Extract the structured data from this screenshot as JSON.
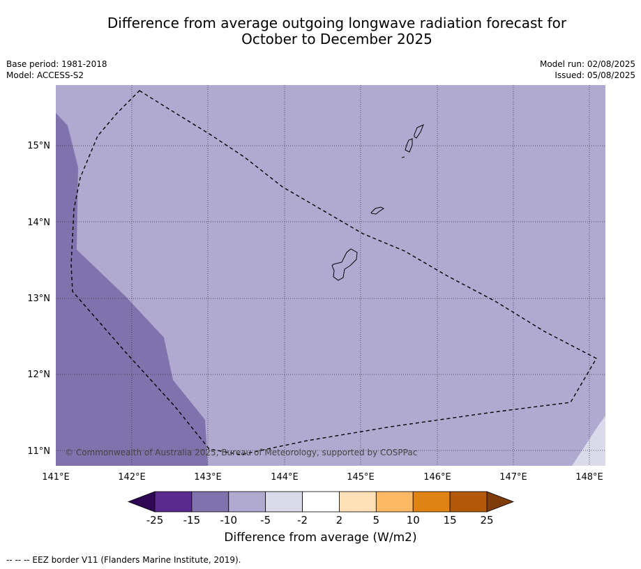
{
  "title_line1": "Difference from average outgoing longwave radiation forecast for",
  "title_line2": "October to December 2025",
  "meta_left": [
    "Base period: 1981-2018",
    "Model: ACCESS-S2"
  ],
  "meta_right": [
    "Model run: 02/08/2025",
    "Issued: 05/08/2025"
  ],
  "copyright": "© Commonwealth of Australia 2025, Bureau of Meteorology, supported by COSPPac",
  "lon_ticks": [
    "141°E",
    "142°E",
    "143°E",
    "144°E",
    "145°E",
    "146°E",
    "147°E",
    "148°E"
  ],
  "lat_ticks": [
    "15°N",
    "14°N",
    "13°N",
    "12°N",
    "11°N"
  ],
  "colorbar": {
    "label": "Difference from average (W/m2)",
    "ticks": [
      "-25",
      "-15",
      "-10",
      "-5",
      "-2",
      "2",
      "5",
      "10",
      "15",
      "25"
    ],
    "colors": {
      "under": "#2e0854",
      "bins": [
        "#5b2a8f",
        "#8073ad",
        "#b0aad1",
        "#dadaeb",
        "#ffffff",
        "#fee0b6",
        "#fdb863",
        "#e08214",
        "#b35806"
      ],
      "over": "#7f3b08"
    }
  },
  "field_colors": {
    "background": "#b0aad1",
    "low": "#8073ad",
    "high": "#dadaeb"
  },
  "footnote": "--  --  -- EEZ border V11 (Flanders Marine Institute, 2019)."
}
